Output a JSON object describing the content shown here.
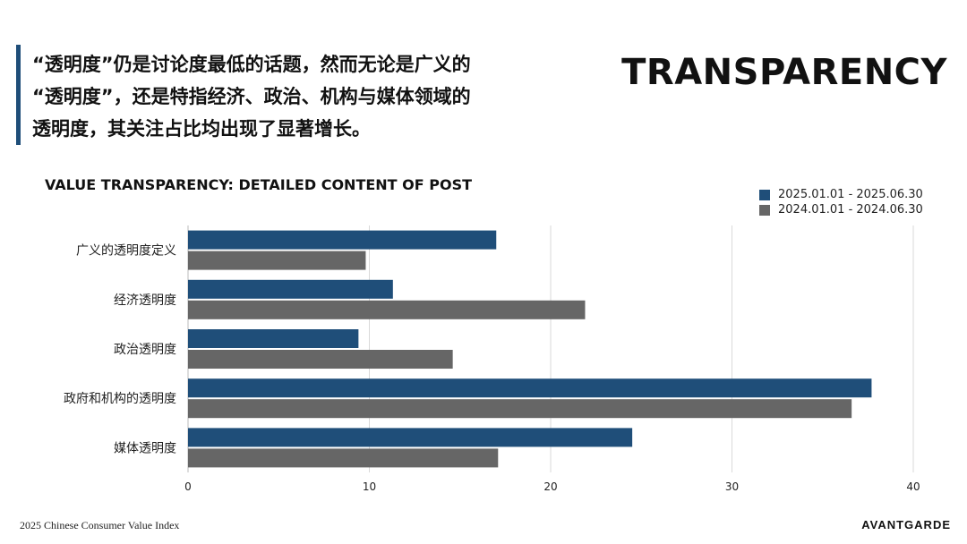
{
  "header": {
    "headline_lines": [
      "“透明度”仍是讨论度最低的话题，然而无论是广义的",
      "“透明度”，还是特指经济、政治、机构与媒体领域的",
      "透明度，其关注占比均出现了显著增长。"
    ],
    "brand_title": "TRANSPARENCY"
  },
  "footer": {
    "left": "2025 Chinese Consumer Value Index",
    "right": "AVANTGARDE"
  },
  "colors": {
    "series_2025": "#1f4e79",
    "series_2024": "#666666",
    "accent": "#1f4e79"
  },
  "chart_data": {
    "type": "bar",
    "orientation": "horizontal",
    "title": "VALUE TRANSPARENCY: DETAILED CONTENT OF POST",
    "categories": [
      "广义的透明度定义",
      "经济透明度",
      "政治透明度",
      "政府和机构的透明度",
      "媒体透明度"
    ],
    "series": [
      {
        "name": "2025.01.01 - 2025.06.30",
        "values": [
          17.0,
          11.3,
          9.4,
          37.7,
          24.5
        ]
      },
      {
        "name": "2024.01.01 - 2024.06.30",
        "values": [
          9.8,
          21.9,
          14.6,
          36.6,
          17.1
        ]
      }
    ],
    "xlim": [
      0,
      40
    ],
    "xticks": [
      "0",
      "10",
      "20",
      "30",
      "40"
    ],
    "grid": true,
    "legend_position": "top-right"
  }
}
